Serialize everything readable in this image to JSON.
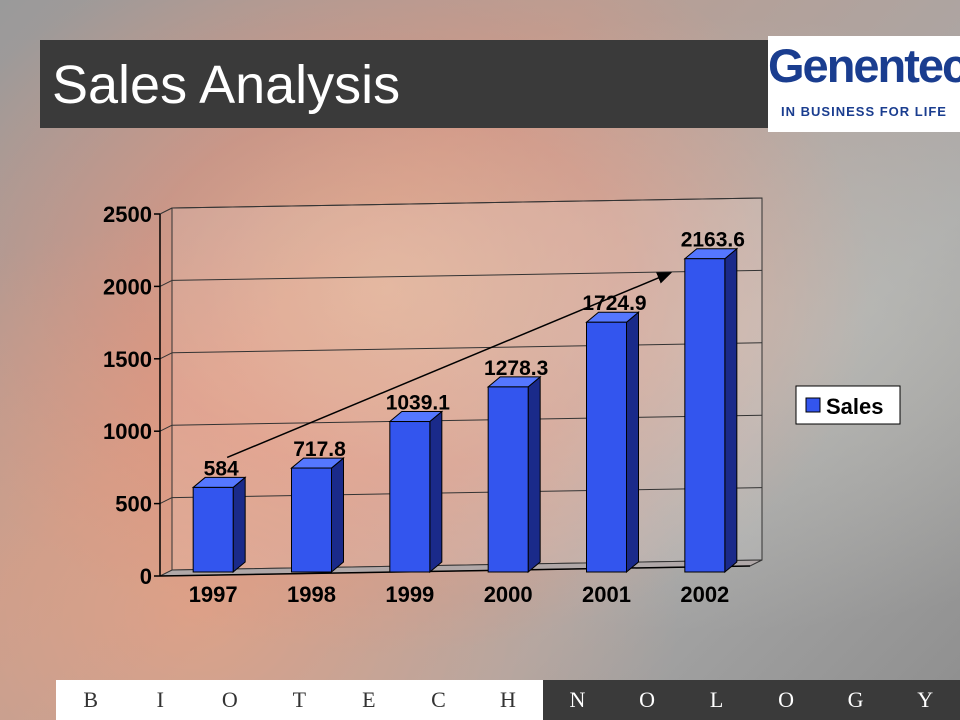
{
  "slide": {
    "title": "Sales Analysis",
    "logo": {
      "name": "Genentech",
      "tagline": "IN BUSINESS FOR LIFE"
    },
    "footer_letters": [
      "B",
      "I",
      "O",
      "T",
      "E",
      "C",
      "H",
      "N",
      "O",
      "L",
      "O",
      "G",
      "Y"
    ]
  },
  "colors": {
    "bar_front": "#3355ee",
    "bar_side": "#1a2a8a",
    "bar_top": "#5577ff",
    "title_bg": "#3a3a3a",
    "logo_text": "#1a3d8f"
  },
  "chart_data": {
    "type": "bar",
    "categories": [
      "1997",
      "1998",
      "1999",
      "2000",
      "2001",
      "2002"
    ],
    "series": [
      {
        "name": "Sales",
        "values": [
          584,
          717.8,
          1039.1,
          1278.3,
          1724.9,
          2163.6
        ]
      }
    ],
    "data_labels": [
      "584",
      "717.8",
      "1039.1",
      "1278.3",
      "1724.9",
      "2163.6"
    ],
    "yticks": [
      0,
      500,
      1000,
      1500,
      2000,
      2500
    ],
    "ylim": [
      0,
      2500
    ],
    "grid": true,
    "legend": "right",
    "trend_arrow": true,
    "style": "3d-bar"
  }
}
